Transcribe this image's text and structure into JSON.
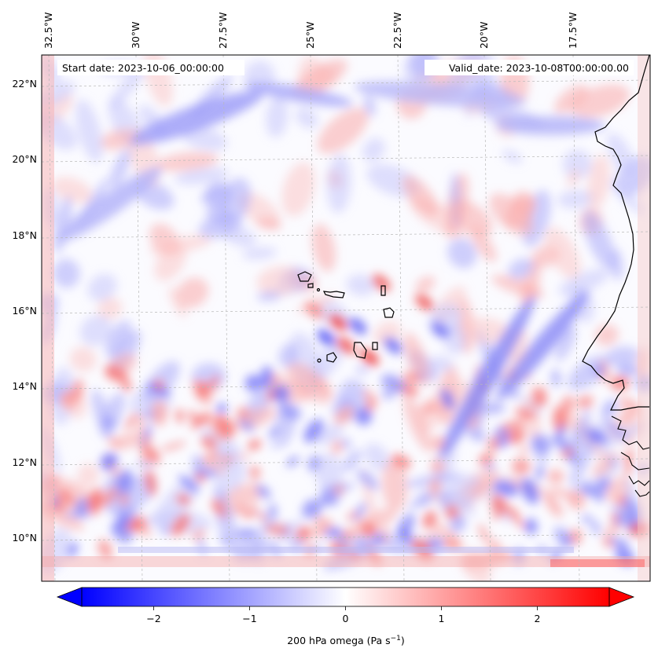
{
  "map": {
    "start_label": "Start date: 2023-10-06_00:00:00",
    "valid_label": "Valid_date: 2023-10-08T00:00:00.00",
    "field": "200 hPa omega",
    "lon_labels": [
      "32.5°W",
      "30°W",
      "27.5°W",
      "25°W",
      "22.5°W",
      "20°W",
      "17.5°W"
    ],
    "lat_labels": [
      "22°N",
      "20°N",
      "18°N",
      "16°N",
      "14°N",
      "12°N",
      "10°N"
    ],
    "islands": [
      "Santo Antão",
      "São Vicente",
      "Santa Luzia",
      "São Nicolau",
      "Sal",
      "Boa Vista",
      "Maio",
      "Santiago",
      "Fogo",
      "Brava"
    ],
    "coast_label": "West African coastline",
    "colors": {
      "negative": "#0000ff",
      "neutral": "#ffffff",
      "positive": "#ff0000",
      "coast": "#000000",
      "grid": "#bbbbbb"
    }
  },
  "colorbar": {
    "label_main": "200 hPa omega (Pa s",
    "label_sup": "−1",
    "label_end": ")",
    "ticks": [
      "−2",
      "−1",
      "0",
      "1",
      "2"
    ],
    "tick_values": [
      -2,
      -1,
      0,
      1,
      2
    ],
    "vmin": -2.75,
    "vmax": 2.75,
    "extend": "both"
  }
}
